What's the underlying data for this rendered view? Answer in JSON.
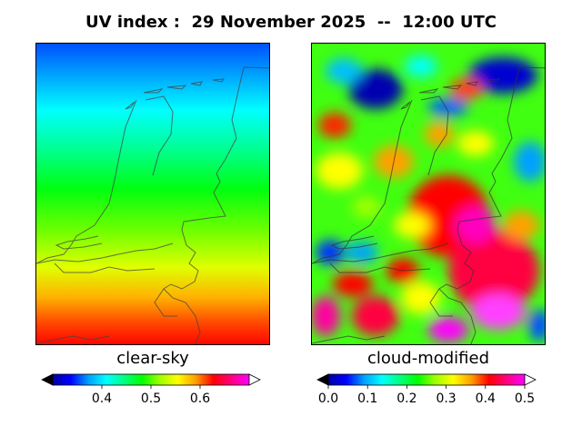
{
  "title": "UV index :  29 November 2025  --  12:00 UTC",
  "panels": {
    "clear_sky": {
      "label": "clear-sky",
      "colorbar": {
        "min": 0.3,
        "max": 0.7,
        "ticks": [
          {
            "value": 0.4,
            "label": "0.4"
          },
          {
            "value": 0.5,
            "label": "0.5"
          },
          {
            "value": 0.6,
            "label": "0.6"
          }
        ],
        "extend": "both"
      }
    },
    "cloud_modified": {
      "label": "cloud-modified",
      "colorbar": {
        "min": 0.0,
        "max": 0.5,
        "ticks": [
          {
            "value": 0.0,
            "label": "0.0"
          },
          {
            "value": 0.1,
            "label": "0.1"
          },
          {
            "value": 0.2,
            "label": "0.2"
          },
          {
            "value": 0.3,
            "label": "0.3"
          },
          {
            "value": 0.4,
            "label": "0.4"
          },
          {
            "value": 0.5,
            "label": "0.5"
          }
        ],
        "extend": "both"
      }
    }
  },
  "colormap": [
    "#000000",
    "#0000a0",
    "#0000ff",
    "#00a0ff",
    "#00ffff",
    "#00ff80",
    "#00ff00",
    "#a0ff00",
    "#ffff00",
    "#ffa000",
    "#ff0000",
    "#ff0080",
    "#ff00ff",
    "#ffffff"
  ]
}
